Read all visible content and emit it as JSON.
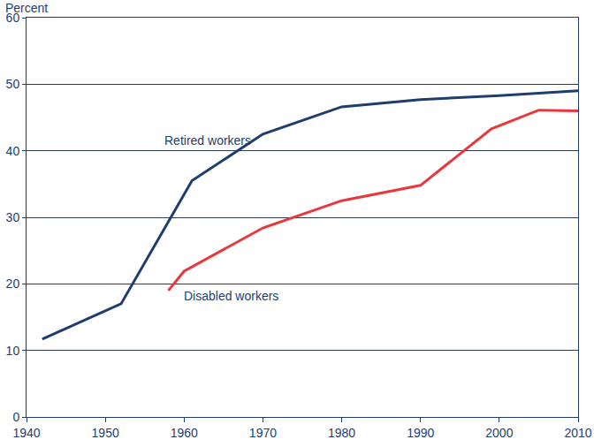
{
  "chart_data": {
    "type": "line",
    "ylabel": "Percent",
    "xlim": [
      1940,
      2010
    ],
    "xticks": [
      1940,
      1950,
      1960,
      1970,
      1980,
      1990,
      2000,
      2010
    ],
    "ylim": [
      0,
      60
    ],
    "yticks": [
      0,
      10,
      20,
      30,
      40,
      50,
      60
    ],
    "grid": true,
    "series": [
      {
        "name": "Retired workers",
        "color": "#1f3d6d",
        "x": [
          1942,
          1952,
          1961,
          1970,
          1980,
          1990,
          2000,
          2010
        ],
        "values": [
          11.7,
          17.0,
          35.5,
          42.5,
          46.6,
          47.7,
          48.3,
          49.0
        ]
      },
      {
        "name": "Disabled workers",
        "color": "#e8383d",
        "x": [
          1958,
          1960,
          1970,
          1980,
          1990,
          1999,
          2005,
          2010
        ],
        "values": [
          19.0,
          21.9,
          28.4,
          32.5,
          34.8,
          43.3,
          46.1,
          46.0
        ]
      }
    ],
    "annotations": [
      {
        "text": "Retired workers",
        "x": 1957.3,
        "y": 41.6
      },
      {
        "text": "Disabled workers",
        "x": 1959.7,
        "y": 18.2
      }
    ]
  }
}
